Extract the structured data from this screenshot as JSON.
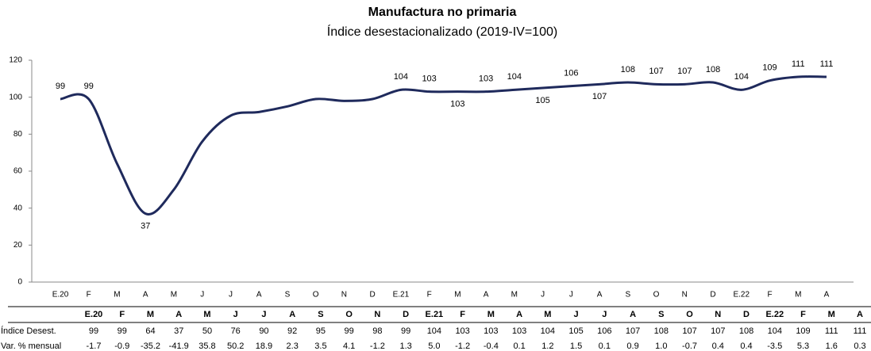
{
  "chart_data": {
    "type": "line",
    "title": "Manufactura no primaria",
    "subtitle": "Índice desestacionalizado (2019-IV=100)",
    "categories": [
      "E.20",
      "F",
      "M",
      "A",
      "M",
      "J",
      "J",
      "A",
      "S",
      "O",
      "N",
      "D",
      "E.21",
      "F",
      "M",
      "A",
      "M",
      "J",
      "J",
      "A",
      "S",
      "O",
      "N",
      "D",
      "E.22",
      "F",
      "M",
      "A"
    ],
    "series": [
      {
        "name": "Índice Desest.",
        "color": "#1f2a5c",
        "values": [
          99,
          99,
          64,
          37,
          50,
          76,
          90,
          92,
          95,
          99,
          98,
          99,
          104,
          103,
          103,
          103,
          104,
          105,
          106,
          107,
          108,
          107,
          107,
          108,
          104,
          109,
          111,
          111
        ],
        "value_labels": [
          "99",
          "99",
          null,
          "37",
          null,
          null,
          null,
          null,
          null,
          null,
          null,
          null,
          "104",
          "103",
          "103",
          "103",
          "104",
          "105",
          "106",
          "107",
          "108",
          "107",
          "107",
          "108",
          "104",
          "109",
          "111",
          "111"
        ]
      }
    ],
    "ylim": [
      0,
      120
    ],
    "yticks": [
      0,
      20,
      40,
      60,
      80,
      100,
      120
    ],
    "grid": false
  },
  "table": {
    "rows": [
      {
        "label": "Var. % mensual",
        "values": [
          "-1.7",
          "-0.9",
          "-35.2",
          "-41.9",
          "35.8",
          "50.2",
          "18.9",
          "2.3",
          "3.5",
          "4.1",
          "-1.2",
          "1.3",
          "5.0",
          "-1.2",
          "-0.4",
          "0.1",
          "1.2",
          "1.5",
          "0.1",
          "0.9",
          "1.0",
          "-0.7",
          "0.4",
          "0.4",
          "-3.5",
          "5.3",
          "1.6",
          "0.3"
        ]
      }
    ]
  }
}
